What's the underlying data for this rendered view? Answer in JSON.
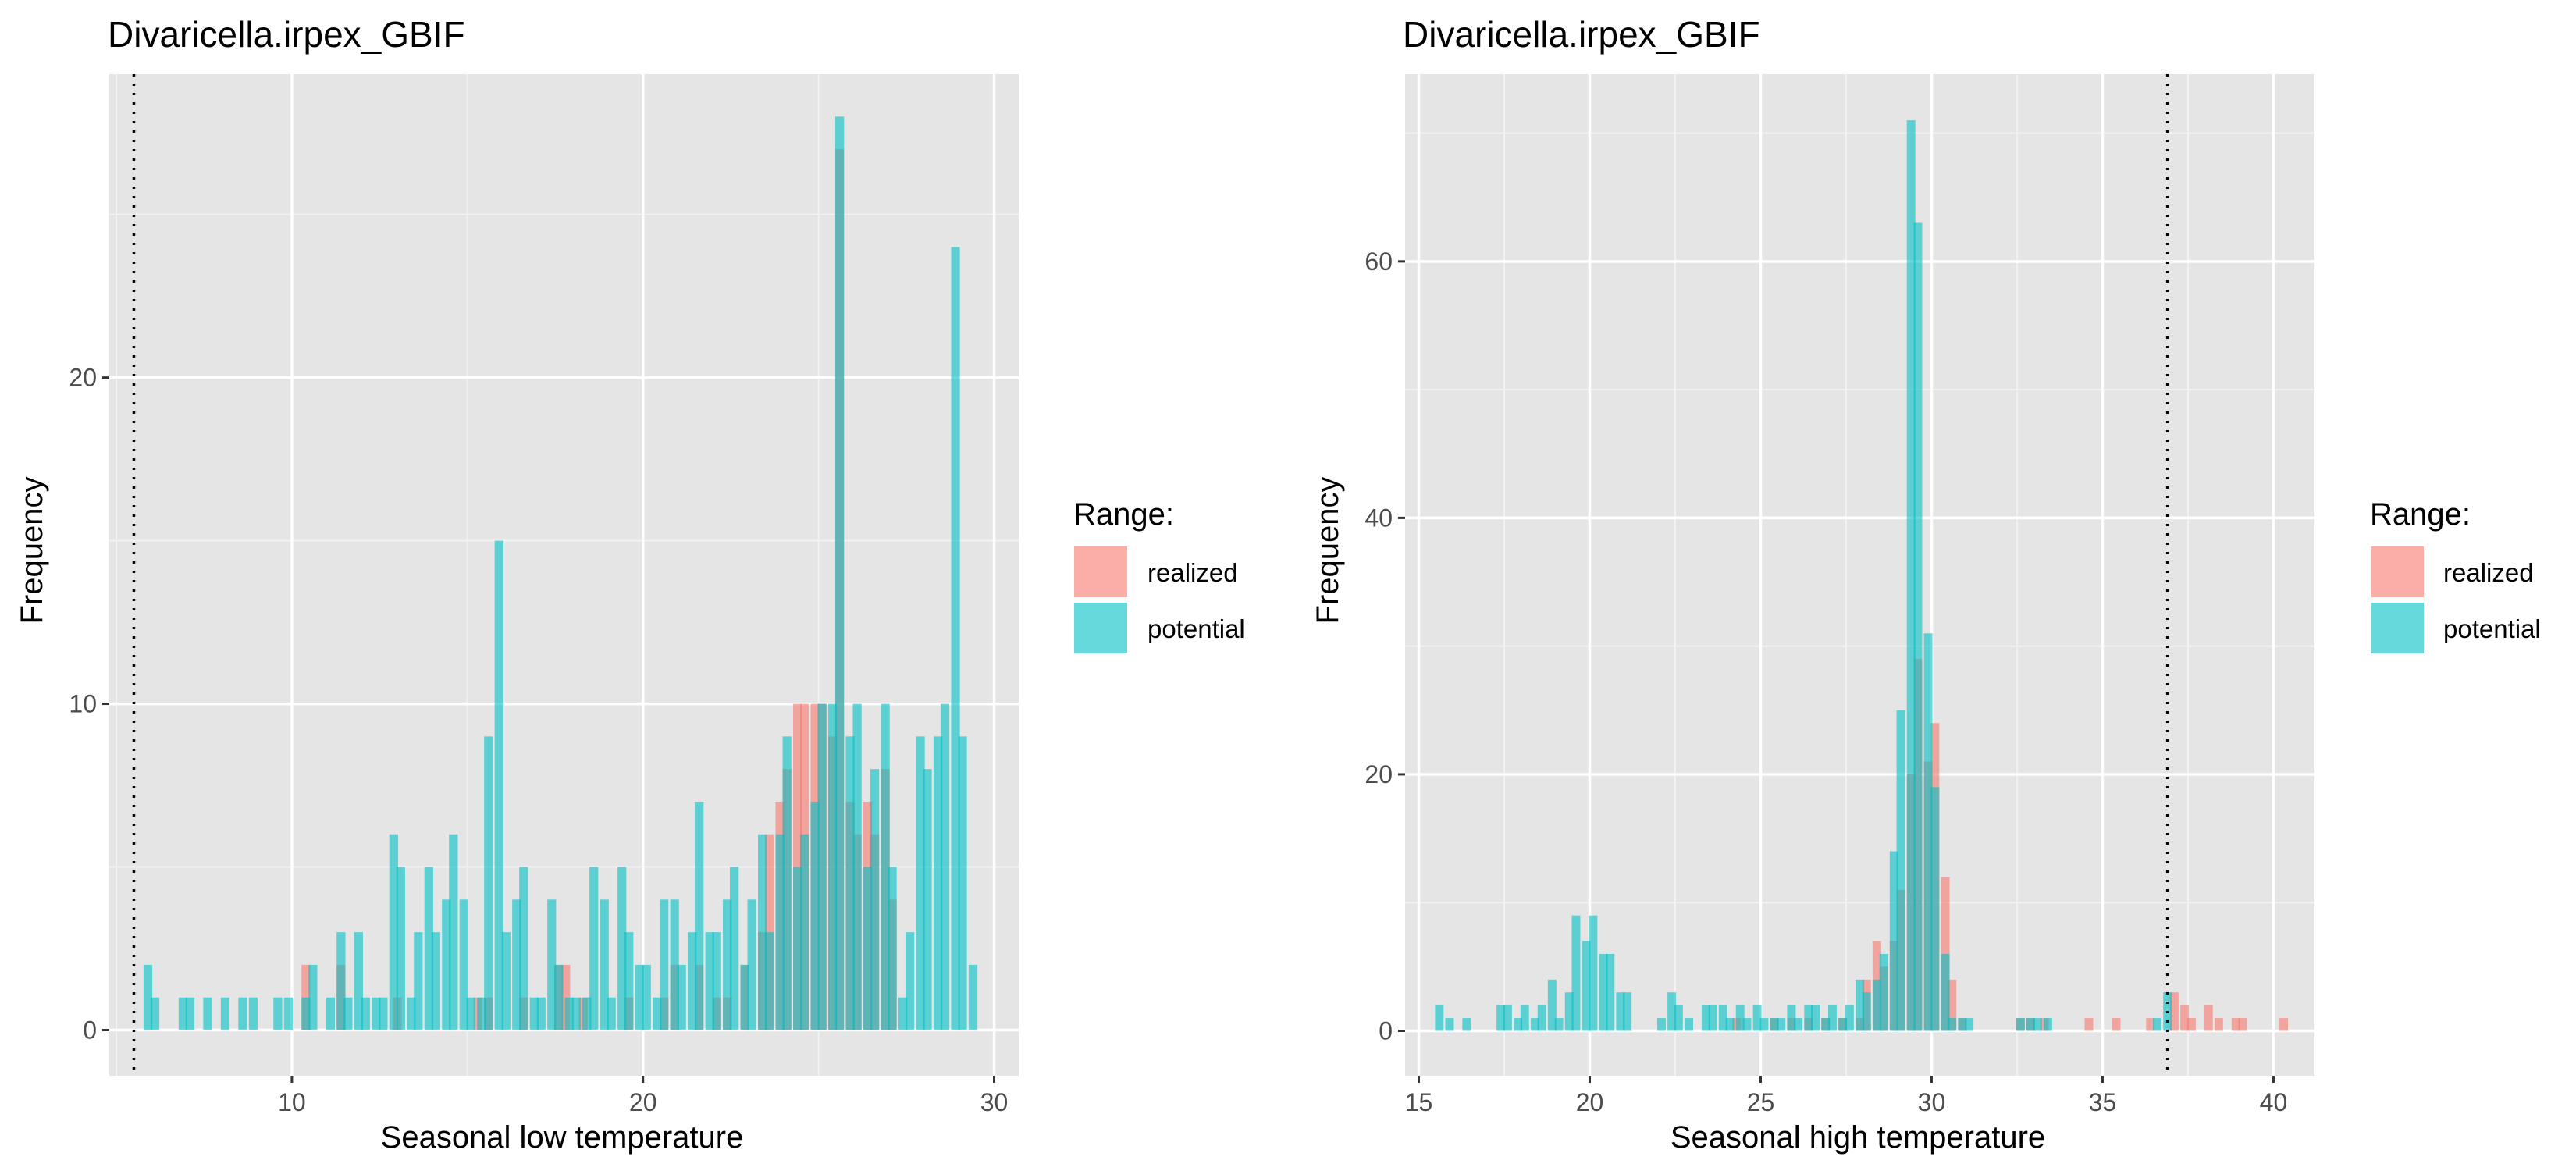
{
  "colors": {
    "realized": "#F8766D",
    "potential": "#00BFC4",
    "panel_bg": "#E5E5E5",
    "grid_major": "#FFFFFF",
    "grid_minor": "#F2F2F2",
    "bar_alpha": 0.6
  },
  "chart_data": [
    {
      "type": "bar",
      "title": "Divaricella.irpex_GBIF",
      "xlabel": "Seasonal low temperature",
      "ylabel": "Frequency",
      "xlim": [
        4.8,
        30.7
      ],
      "ylim": [
        -1.4,
        29.3
      ],
      "xticks": [
        10,
        20,
        30
      ],
      "yticks": [
        0,
        10,
        20
      ],
      "bin_width": 0.25,
      "vline": 5.5,
      "legend": {
        "title": "Range:",
        "position": "right",
        "items": [
          "realized",
          "potential"
        ]
      },
      "series": [
        {
          "name": "realized",
          "x": [
            10.4,
            11.4,
            13.0,
            15.3,
            15.6,
            16.6,
            17.6,
            17.8,
            18.3,
            19.6,
            20.6,
            20.9,
            21.6,
            22.1,
            22.4,
            22.9,
            23.4,
            23.6,
            23.9,
            24.1,
            24.4,
            24.6,
            24.9,
            25.1,
            25.4,
            25.6,
            25.9,
            26.1,
            26.4,
            26.6,
            26.9,
            27.1
          ],
          "values": [
            2,
            2,
            1,
            1,
            1,
            1,
            2,
            2,
            1,
            1,
            1,
            2,
            2,
            1,
            1,
            2,
            3,
            6,
            7,
            8,
            10,
            10,
            10,
            10,
            9,
            27,
            7,
            6,
            7,
            6,
            8,
            4
          ]
        },
        {
          "name": "potential",
          "x": [
            5.9,
            6.1,
            6.9,
            7.1,
            7.6,
            8.1,
            8.6,
            8.9,
            9.6,
            9.9,
            10.4,
            10.6,
            11.1,
            11.4,
            11.6,
            11.9,
            12.1,
            12.4,
            12.6,
            12.9,
            13.1,
            13.4,
            13.6,
            13.9,
            14.1,
            14.4,
            14.6,
            14.9,
            15.1,
            15.4,
            15.6,
            15.9,
            16.1,
            16.4,
            16.6,
            16.9,
            17.1,
            17.4,
            17.6,
            17.9,
            18.1,
            18.4,
            18.6,
            18.9,
            19.1,
            19.4,
            19.6,
            19.9,
            20.1,
            20.4,
            20.6,
            20.9,
            21.1,
            21.4,
            21.6,
            21.9,
            22.1,
            22.4,
            22.6,
            22.9,
            23.1,
            23.4,
            23.6,
            23.9,
            24.1,
            24.4,
            24.6,
            24.9,
            25.1,
            25.4,
            25.6,
            25.9,
            26.1,
            26.4,
            26.6,
            26.9,
            27.1,
            27.4,
            27.6,
            27.9,
            28.1,
            28.4,
            28.6,
            28.9,
            29.1,
            29.4
          ],
          "values": [
            2,
            1,
            1,
            1,
            1,
            1,
            1,
            1,
            1,
            1,
            1,
            2,
            1,
            3,
            1,
            3,
            1,
            1,
            1,
            6,
            5,
            1,
            3,
            5,
            3,
            4,
            6,
            4,
            1,
            1,
            9,
            15,
            3,
            4,
            5,
            1,
            1,
            4,
            2,
            1,
            1,
            1,
            5,
            4,
            1,
            5,
            3,
            2,
            2,
            1,
            4,
            4,
            2,
            3,
            7,
            3,
            3,
            4,
            5,
            2,
            4,
            6,
            3,
            6,
            9,
            5,
            6,
            7,
            10,
            10,
            28,
            9,
            10,
            5,
            8,
            10,
            5,
            1,
            3,
            9,
            8,
            9,
            10,
            24,
            9,
            2
          ]
        }
      ]
    },
    {
      "type": "bar",
      "title": "Divaricella.irpex_GBIF",
      "xlabel": "Seasonal high temperature",
      "ylabel": "Frequency",
      "xlim": [
        14.6,
        41.2
      ],
      "ylim": [
        -3.5,
        74.6
      ],
      "xticks": [
        15,
        20,
        25,
        30,
        35,
        40
      ],
      "yticks": [
        0,
        20,
        40,
        60
      ],
      "bin_width": 0.25,
      "vline": 36.9,
      "legend": {
        "title": "Range:",
        "position": "right",
        "items": [
          "realized",
          "potential"
        ]
      },
      "series": [
        {
          "name": "realized",
          "x": [
            24.3,
            25.4,
            25.9,
            26.4,
            26.9,
            27.4,
            27.9,
            28.1,
            28.4,
            28.6,
            28.9,
            29.1,
            29.4,
            29.6,
            29.9,
            30.1,
            30.4,
            30.6,
            30.9,
            32.6,
            32.9,
            33.3,
            34.6,
            35.4,
            36.4,
            37.1,
            37.4,
            37.6,
            38.1,
            38.4,
            38.9,
            39.1,
            40.3
          ],
          "values": [
            1,
            1,
            1,
            1,
            1,
            1,
            1,
            4,
            7,
            5,
            7,
            11,
            20,
            29,
            21,
            24,
            12,
            4,
            1,
            1,
            1,
            1,
            1,
            1,
            1,
            3,
            2,
            1,
            2,
            1,
            1,
            1,
            1
          ]
        },
        {
          "name": "potential",
          "x": [
            15.6,
            15.9,
            16.4,
            17.4,
            17.6,
            17.9,
            18.1,
            18.4,
            18.6,
            18.9,
            19.1,
            19.4,
            19.6,
            19.9,
            20.1,
            20.4,
            20.6,
            20.9,
            21.1,
            22.1,
            22.4,
            22.6,
            22.9,
            23.4,
            23.6,
            23.9,
            24.1,
            24.4,
            24.6,
            24.9,
            25.1,
            25.4,
            25.6,
            25.9,
            26.1,
            26.4,
            26.6,
            26.9,
            27.1,
            27.4,
            27.6,
            27.9,
            28.1,
            28.4,
            28.6,
            28.9,
            29.1,
            29.4,
            29.6,
            29.9,
            30.1,
            30.4,
            30.6,
            30.9,
            31.1,
            32.6,
            32.9,
            33.1,
            33.4,
            36.6,
            36.9
          ],
          "values": [
            2,
            1,
            1,
            2,
            2,
            1,
            2,
            1,
            2,
            4,
            1,
            3,
            9,
            7,
            9,
            6,
            6,
            3,
            3,
            1,
            3,
            2,
            1,
            2,
            2,
            2,
            1,
            2,
            1,
            2,
            1,
            1,
            1,
            2,
            1,
            2,
            2,
            1,
            2,
            1,
            2,
            4,
            3,
            4,
            6,
            14,
            25,
            71,
            63,
            31,
            19,
            6,
            1,
            1,
            1,
            1,
            1,
            1,
            1,
            1,
            3
          ]
        }
      ]
    }
  ]
}
